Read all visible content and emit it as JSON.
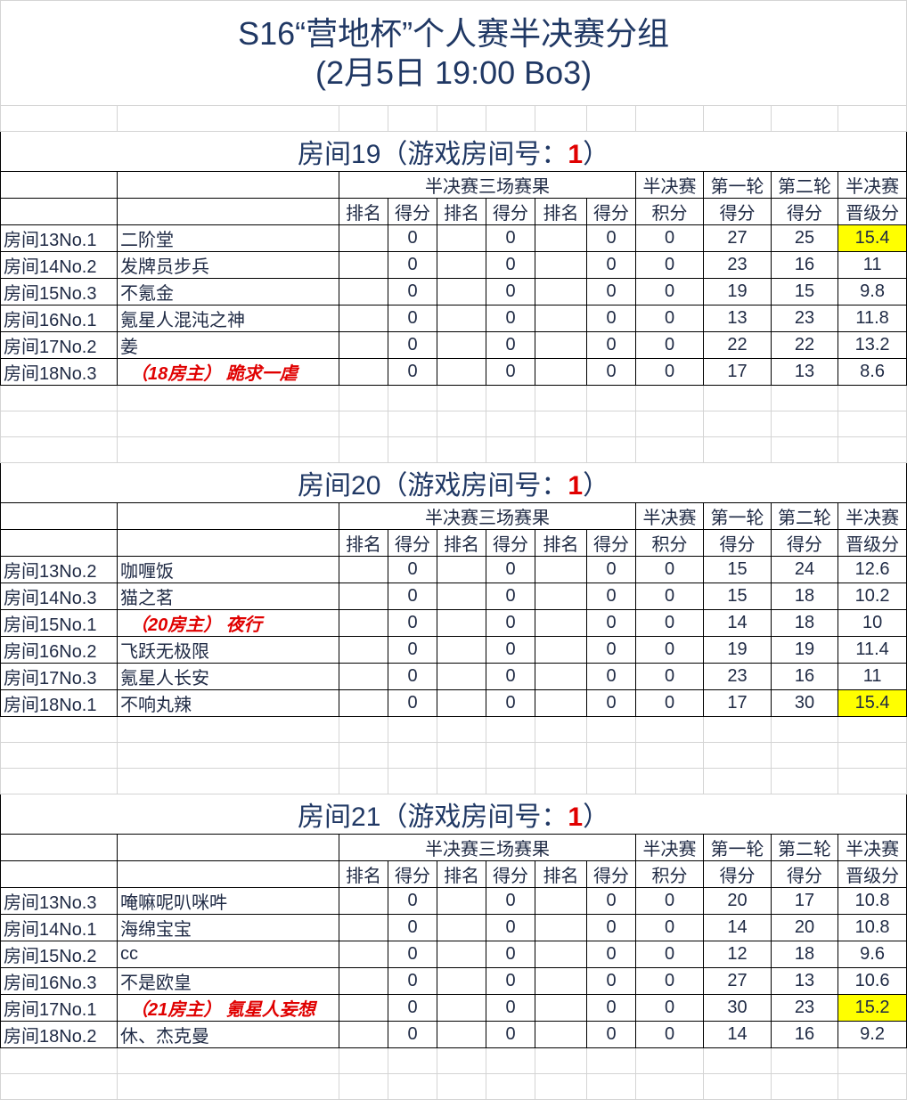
{
  "title": {
    "line1": "S16“营地杯”个人赛半决赛分组",
    "line2": "(2月5日 19:00 Bo3)"
  },
  "headers": {
    "group_results": "半决赛三场赛果",
    "semi_top": "半决赛",
    "r1_top": "第一轮",
    "r2_top": "第二轮",
    "adv_top": "半决赛",
    "rank": "排名",
    "score": "得分",
    "semi_bottom": "积分",
    "r1_bottom": "得分",
    "r2_bottom": "得分",
    "adv_bottom": "晋级分"
  },
  "highlight_color": "#ffff00",
  "host_color": "#e00000",
  "rooms": [
    {
      "label": "房间19（游戏房间号：",
      "number": "1",
      "close": "）",
      "rows": [
        {
          "seed": "房间13No.1",
          "name": "二阶堂",
          "s1": "0",
          "s2": "0",
          "s3": "0",
          "total": "0",
          "r1": "27",
          "r2": "25",
          "adv": "15.4",
          "highlight": true
        },
        {
          "seed": "房间14No.2",
          "name": "发牌员步兵",
          "s1": "0",
          "s2": "0",
          "s3": "0",
          "total": "0",
          "r1": "23",
          "r2": "16",
          "adv": "11"
        },
        {
          "seed": "房间15No.3",
          "name": "不氪金",
          "s1": "0",
          "s2": "0",
          "s3": "0",
          "total": "0",
          "r1": "19",
          "r2": "15",
          "adv": "9.8"
        },
        {
          "seed": "房间16No.1",
          "name": "氪星人混沌之神",
          "s1": "0",
          "s2": "0",
          "s3": "0",
          "total": "0",
          "r1": "13",
          "r2": "23",
          "adv": "11.8"
        },
        {
          "seed": "房间17No.2",
          "name": "姜",
          "s1": "0",
          "s2": "0",
          "s3": "0",
          "total": "0",
          "r1": "22",
          "r2": "22",
          "adv": "13.2"
        },
        {
          "seed": "房间18No.3",
          "name": "（18房主） 跪求一虐",
          "host": true,
          "s1": "0",
          "s2": "0",
          "s3": "0",
          "total": "0",
          "r1": "17",
          "r2": "13",
          "adv": "8.6"
        }
      ]
    },
    {
      "label": "房间20（游戏房间号：",
      "number": "1",
      "close": "）",
      "rows": [
        {
          "seed": "房间13No.2",
          "name": "咖喱饭",
          "s1": "0",
          "s2": "0",
          "s3": "0",
          "total": "0",
          "r1": "15",
          "r2": "24",
          "adv": "12.6"
        },
        {
          "seed": "房间14No.3",
          "name": "猫之茗",
          "s1": "0",
          "s2": "0",
          "s3": "0",
          "total": "0",
          "r1": "15",
          "r2": "18",
          "adv": "10.2"
        },
        {
          "seed": "房间15No.1",
          "name": "（20房主） 夜行",
          "host": true,
          "s1": "0",
          "s2": "0",
          "s3": "0",
          "total": "0",
          "r1": "14",
          "r2": "18",
          "adv": "10"
        },
        {
          "seed": "房间16No.2",
          "name": "飞跃无极限",
          "s1": "0",
          "s2": "0",
          "s3": "0",
          "total": "0",
          "r1": "19",
          "r2": "19",
          "adv": "11.4"
        },
        {
          "seed": "房间17No.3",
          "name": "氪星人长安",
          "s1": "0",
          "s2": "0",
          "s3": "0",
          "total": "0",
          "r1": "23",
          "r2": "16",
          "adv": "11"
        },
        {
          "seed": "房间18No.1",
          "name": "不响丸辣",
          "s1": "0",
          "s2": "0",
          "s3": "0",
          "total": "0",
          "r1": "17",
          "r2": "30",
          "adv": "15.4",
          "highlight": true
        }
      ]
    },
    {
      "label": "房间21（游戏房间号：",
      "number": "1",
      "close": "）",
      "rows": [
        {
          "seed": "房间13No.3",
          "name": "唵嘛呢叭咪吽",
          "s1": "0",
          "s2": "0",
          "s3": "0",
          "total": "0",
          "r1": "20",
          "r2": "17",
          "adv": "10.8"
        },
        {
          "seed": "房间14No.1",
          "name": "海绵宝宝",
          "s1": "0",
          "s2": "0",
          "s3": "0",
          "total": "0",
          "r1": "14",
          "r2": "20",
          "adv": "10.8"
        },
        {
          "seed": "房间15No.2",
          "name": "cc",
          "s1": "0",
          "s2": "0",
          "s3": "0",
          "total": "0",
          "r1": "12",
          "r2": "18",
          "adv": "9.6"
        },
        {
          "seed": "房间16No.3",
          "name": "不是欧皇",
          "s1": "0",
          "s2": "0",
          "s3": "0",
          "total": "0",
          "r1": "27",
          "r2": "13",
          "adv": "10.6"
        },
        {
          "seed": "房间17No.1",
          "name": "（21房主） 氪星人妄想",
          "host": true,
          "s1": "0",
          "s2": "0",
          "s3": "0",
          "total": "0",
          "r1": "30",
          "r2": "23",
          "adv": "15.2",
          "highlight": true
        },
        {
          "seed": "房间18No.2",
          "name": "休、杰克曼",
          "s1": "0",
          "s2": "0",
          "s3": "0",
          "total": "0",
          "r1": "14",
          "r2": "16",
          "adv": "9.2"
        }
      ]
    }
  ]
}
